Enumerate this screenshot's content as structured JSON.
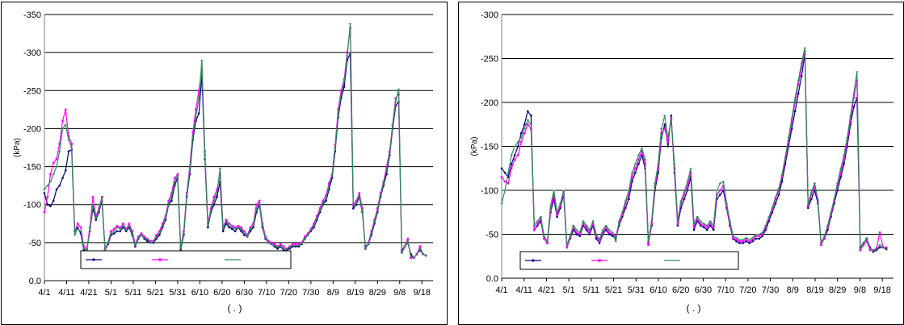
{
  "charts": [
    {
      "type": "line",
      "ylabel": "(kPa)",
      "xlabel": "( . )",
      "ylim": [
        -350,
        0
      ],
      "yticks": [
        0,
        -50,
        -100,
        -150,
        -200,
        -250,
        -300,
        -350
      ],
      "ytick_labels": [
        "0.0",
        "-50",
        "-100",
        "-150",
        "-200",
        "-250",
        "-300",
        "-350"
      ],
      "xtick_labels": [
        "4/1",
        "4/11",
        "4/21",
        "5/1",
        "5/11",
        "5/21",
        "5/31",
        "6/10",
        "6/20",
        "6/30",
        "7/10",
        "7/20",
        "7/30",
        "8/9",
        "8/19",
        "8/29",
        "9/8",
        "9/18"
      ],
      "grid": true,
      "legend": "bottom-left",
      "series": [
        {
          "color": "#000080",
          "marker": "dot",
          "values": [
            -115,
            -100,
            -98,
            -105,
            -120,
            -125,
            -135,
            -145,
            -170,
            -172,
            -65,
            -70,
            -62,
            -40,
            -42,
            -65,
            -95,
            -80,
            -90,
            -105,
            -40,
            -48,
            -60,
            -62,
            -65,
            -65,
            -70,
            -65,
            -70,
            -60,
            -45,
            -55,
            -60,
            -55,
            -52,
            -50,
            -50,
            -55,
            -60,
            -70,
            -80,
            -100,
            -105,
            -125,
            -135,
            -40,
            -60,
            -110,
            -140,
            -185,
            -210,
            -220,
            -270,
            -160,
            -70,
            -90,
            -100,
            -110,
            -130,
            -65,
            -75,
            -70,
            -68,
            -65,
            -70,
            -65,
            -60,
            -58,
            -65,
            -70,
            -90,
            -100,
            -70,
            -55,
            -50,
            -48,
            -45,
            -42,
            -45,
            -40,
            -40,
            -42,
            -45,
            -45,
            -45,
            -48,
            -55,
            -60,
            -65,
            -70,
            -80,
            -90,
            -100,
            -105,
            -120,
            -135,
            -170,
            -215,
            -240,
            -255,
            -290,
            -298,
            -95,
            -100,
            -110,
            -90,
            -45,
            -48,
            -60,
            -75,
            -90,
            -110,
            -125,
            -140,
            -165,
            -200,
            -230,
            -235,
            -40,
            -45,
            -50,
            -35,
            -30,
            -35,
            -40,
            -35,
            -33
          ]
        },
        {
          "color": "#ff00ff",
          "marker": "square",
          "values": [
            -90,
            -110,
            -140,
            -155,
            -160,
            -180,
            -210,
            -225,
            -190,
            -180,
            -65,
            -75,
            -70,
            -45,
            -42,
            -70,
            -110,
            -85,
            -95,
            -110,
            -40,
            -50,
            -65,
            -68,
            -72,
            -70,
            -75,
            -68,
            -75,
            -65,
            -48,
            -58,
            -62,
            -58,
            -55,
            -52,
            -52,
            -60,
            -65,
            -75,
            -85,
            -105,
            -115,
            -135,
            -140,
            -45,
            -65,
            -115,
            -150,
            -195,
            -225,
            -250,
            -278,
            -170,
            -75,
            -95,
            -110,
            -120,
            -140,
            -70,
            -80,
            -75,
            -72,
            -70,
            -72,
            -70,
            -65,
            -60,
            -70,
            -75,
            -100,
            -105,
            -75,
            -58,
            -52,
            -50,
            -48,
            -45,
            -48,
            -45,
            -42,
            -45,
            -48,
            -48,
            -48,
            -50,
            -58,
            -62,
            -68,
            -75,
            -85,
            -95,
            -105,
            -112,
            -128,
            -140,
            -178,
            -225,
            -250,
            -265,
            -300,
            -332,
            -100,
            -105,
            -115,
            -95,
            -42,
            -50,
            -65,
            -80,
            -95,
            -115,
            -130,
            -150,
            -170,
            -205,
            -240,
            -245,
            -38,
            -45,
            -55,
            -30,
            -30,
            -35,
            -45,
            -35,
            -33
          ]
        },
        {
          "color": "#2e8b57",
          "marker": "dash",
          "values": [
            -120,
            -125,
            -130,
            -140,
            -150,
            -170,
            -200,
            -205,
            -185,
            -175,
            -60,
            -68,
            -65,
            -42,
            -40,
            -65,
            -100,
            -82,
            -92,
            -108,
            -42,
            -50,
            -62,
            -65,
            -70,
            -68,
            -72,
            -66,
            -72,
            -62,
            -46,
            -56,
            -60,
            -56,
            -54,
            -50,
            -51,
            -58,
            -62,
            -72,
            -82,
            -102,
            -110,
            -130,
            -138,
            -42,
            -62,
            -112,
            -145,
            -190,
            -215,
            -240,
            -290,
            -165,
            -72,
            -92,
            -105,
            -115,
            -148,
            -68,
            -78,
            -72,
            -70,
            -68,
            -70,
            -68,
            -62,
            -58,
            -68,
            -72,
            -95,
            -102,
            -72,
            -56,
            -50,
            -48,
            -46,
            -44,
            -46,
            -42,
            -42,
            -44,
            -46,
            -46,
            -46,
            -48,
            -56,
            -60,
            -66,
            -72,
            -82,
            -92,
            -102,
            -108,
            -124,
            -138,
            -175,
            -220,
            -245,
            -262,
            -295,
            -338,
            -98,
            -102,
            -112,
            -92,
            -42,
            -48,
            -62,
            -78,
            -92,
            -112,
            -128,
            -145,
            -168,
            -205,
            -235,
            -252,
            -36,
            -44,
            -52,
            -32,
            -30,
            -34,
            -42,
            -35,
            -33
          ]
        }
      ]
    },
    {
      "type": "line",
      "ylabel": "(kPa)",
      "xlabel": "( . )",
      "ylim": [
        -300,
        0
      ],
      "yticks": [
        0,
        -50,
        -100,
        -150,
        -200,
        -250,
        -300
      ],
      "ytick_labels": [
        "0.0",
        "-50",
        "-100",
        "-150",
        "-200",
        "-250",
        "-300"
      ],
      "xtick_labels": [
        "4/1",
        "4/11",
        "4/21",
        "5/1",
        "5/11",
        "5/21",
        "5/31",
        "6/10",
        "6/20",
        "6/30",
        "7/10",
        "7/20",
        "7/30",
        "8/9",
        "8/19",
        "8/29",
        "9/8",
        "9/18"
      ],
      "grid": true,
      "legend": "bottom-left",
      "series": [
        {
          "color": "#000080",
          "marker": "dot",
          "values": [
            -125,
            -120,
            -115,
            -130,
            -140,
            -150,
            -165,
            -175,
            -190,
            -185,
            -55,
            -60,
            -65,
            -45,
            -40,
            -75,
            -90,
            -70,
            -80,
            -95,
            -35,
            -45,
            -55,
            -50,
            -48,
            -60,
            -55,
            -50,
            -60,
            -45,
            -40,
            -50,
            -55,
            -50,
            -48,
            -45,
            -60,
            -70,
            -80,
            -90,
            -110,
            -120,
            -130,
            -140,
            -125,
            -40,
            -60,
            -100,
            -120,
            -160,
            -175,
            -150,
            -185,
            -120,
            -60,
            -80,
            -90,
            -100,
            -115,
            -55,
            -65,
            -60,
            -58,
            -55,
            -60,
            -55,
            -90,
            -95,
            -100,
            -80,
            -60,
            -45,
            -42,
            -40,
            -40,
            -42,
            -40,
            -42,
            -45,
            -45,
            -48,
            -55,
            -65,
            -75,
            -85,
            -95,
            -110,
            -130,
            -150,
            -170,
            -190,
            -210,
            -230,
            -255,
            -80,
            -90,
            -100,
            -85,
            -40,
            -45,
            -55,
            -70,
            -85,
            -100,
            -115,
            -130,
            -150,
            -175,
            -195,
            -205,
            -35,
            -40,
            -45,
            -35,
            -30,
            -32,
            -35,
            -35,
            -33
          ]
        },
        {
          "color": "#ff00ff",
          "marker": "square",
          "values": [
            -115,
            -110,
            -108,
            -125,
            -135,
            -140,
            -155,
            -165,
            -175,
            -170,
            -55,
            -62,
            -68,
            -45,
            -40,
            -78,
            -95,
            -72,
            -82,
            -98,
            -35,
            -46,
            -58,
            -52,
            -50,
            -62,
            -58,
            -52,
            -62,
            -48,
            -42,
            -52,
            -58,
            -52,
            -50,
            -48,
            -62,
            -72,
            -85,
            -95,
            -115,
            -125,
            -135,
            -145,
            -130,
            -38,
            -62,
            -105,
            -125,
            -165,
            -170,
            -155,
            -182,
            -125,
            -62,
            -85,
            -95,
            -105,
            -120,
            -58,
            -68,
            -62,
            -60,
            -58,
            -62,
            -58,
            -95,
            -100,
            -105,
            -82,
            -62,
            -46,
            -44,
            -42,
            -42,
            -44,
            -42,
            -44,
            -48,
            -48,
            -50,
            -58,
            -68,
            -78,
            -90,
            -100,
            -115,
            -135,
            -155,
            -178,
            -200,
            -220,
            -240,
            -258,
            -82,
            -95,
            -105,
            -88,
            -38,
            -46,
            -58,
            -72,
            -88,
            -105,
            -120,
            -135,
            -155,
            -180,
            -205,
            -225,
            -32,
            -38,
            -42,
            -32,
            -32,
            -34,
            -52,
            -35,
            -35
          ]
        },
        {
          "color": "#2e8b57",
          "marker": "dash",
          "values": [
            -85,
            -100,
            -120,
            -140,
            -150,
            -155,
            -160,
            -170,
            -180,
            -175,
            -60,
            -65,
            -70,
            -48,
            -42,
            -82,
            -100,
            -75,
            -85,
            -100,
            -38,
            -48,
            -60,
            -55,
            -52,
            -65,
            -60,
            -55,
            -65,
            -50,
            -44,
            -55,
            -60,
            -55,
            -52,
            -42,
            -65,
            -75,
            -88,
            -100,
            -120,
            -130,
            -140,
            -148,
            -135,
            -42,
            -65,
            -108,
            -130,
            -170,
            -185,
            -160,
            -180,
            -130,
            -65,
            -88,
            -98,
            -110,
            -125,
            -62,
            -70,
            -65,
            -62,
            -60,
            -65,
            -60,
            -100,
            -108,
            -110,
            -85,
            -65,
            -48,
            -46,
            -44,
            -44,
            -46,
            -44,
            -46,
            -50,
            -50,
            -52,
            -60,
            -70,
            -80,
            -92,
            -102,
            -118,
            -138,
            -160,
            -182,
            -205,
            -225,
            -245,
            -262,
            -84,
            -98,
            -108,
            -90,
            -40,
            -48,
            -60,
            -75,
            -90,
            -108,
            -125,
            -140,
            -160,
            -185,
            -210,
            -235,
            -34,
            -40,
            -46,
            -34,
            -31,
            -33,
            -38,
            -35,
            -34
          ]
        }
      ]
    }
  ]
}
